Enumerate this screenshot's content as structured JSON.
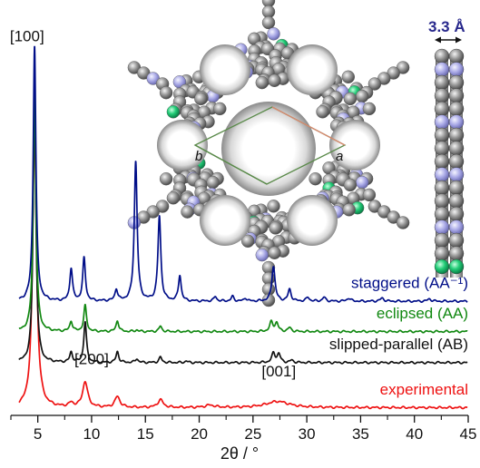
{
  "chart_data": {
    "type": "line",
    "title": "",
    "xlabel": "2θ / °",
    "ylabel": "",
    "xlim": [
      2.5,
      45
    ],
    "ylim": [
      -0.1,
      4.9
    ],
    "grid": false,
    "legend": "inline-right",
    "xticks_major": [
      5,
      10,
      15,
      20,
      25,
      30,
      35,
      40,
      45
    ],
    "xtick_labels": [
      "5",
      "10",
      "15",
      "20",
      "25",
      "30",
      "35",
      "40",
      "45"
    ],
    "xticks_minor": [
      2.5,
      7.5,
      12.5,
      17.5,
      22.5,
      27.5,
      32.5,
      37.5,
      42.5
    ],
    "series": [
      {
        "name": "experimental",
        "color": "#ee1111",
        "offset": 0,
        "peaks": [
          {
            "x": 4.7,
            "h": 3.55,
            "w": 0.22
          },
          {
            "x": 8.1,
            "h": 0.05,
            "w": 0.25
          },
          {
            "x": 9.4,
            "h": 0.33,
            "w": 0.28
          },
          {
            "x": 12.4,
            "h": 0.14,
            "w": 0.28
          },
          {
            "x": 16.4,
            "h": 0.1,
            "w": 0.3
          },
          {
            "x": 21.0,
            "h": 0.03,
            "w": 0.5
          },
          {
            "x": 27.3,
            "h": 0.08,
            "w": 1.3
          }
        ]
      },
      {
        "name": "slipped-parallel (AB)",
        "color": "#111111",
        "offset": 0.58,
        "peaks": [
          {
            "x": 4.7,
            "h": 3.55,
            "w": 0.15
          },
          {
            "x": 8.1,
            "h": 0.13,
            "w": 0.15
          },
          {
            "x": 9.4,
            "h": 0.52,
            "w": 0.15
          },
          {
            "x": 12.4,
            "h": 0.14,
            "w": 0.15
          },
          {
            "x": 14.2,
            "h": 0.05,
            "w": 0.15
          },
          {
            "x": 16.4,
            "h": 0.07,
            "w": 0.15
          },
          {
            "x": 18.8,
            "h": 0.02,
            "w": 0.15
          },
          {
            "x": 26.9,
            "h": 0.12,
            "w": 0.18
          },
          {
            "x": 27.4,
            "h": 0.11,
            "w": 0.18
          },
          {
            "x": 28.6,
            "h": 0.03,
            "w": 0.18
          }
        ]
      },
      {
        "name": "eclipsed (AA)",
        "color": "#118811",
        "offset": 0.98,
        "peaks": [
          {
            "x": 4.7,
            "h": 3.1,
            "w": 0.15
          },
          {
            "x": 8.1,
            "h": 0.13,
            "w": 0.15
          },
          {
            "x": 9.4,
            "h": 0.33,
            "w": 0.15
          },
          {
            "x": 12.4,
            "h": 0.14,
            "w": 0.15
          },
          {
            "x": 14.2,
            "h": 0.02,
            "w": 0.15
          },
          {
            "x": 16.4,
            "h": 0.07,
            "w": 0.15
          },
          {
            "x": 26.7,
            "h": 0.12,
            "w": 0.18
          },
          {
            "x": 27.2,
            "h": 0.11,
            "w": 0.18
          },
          {
            "x": 28.4,
            "h": 0.05,
            "w": 0.18
          }
        ]
      },
      {
        "name": "staggered (AA⁻¹)",
        "color": "#000e88",
        "offset": 1.37,
        "peaks": [
          {
            "x": 4.7,
            "h": 3.3,
            "w": 0.15
          },
          {
            "x": 8.1,
            "h": 0.42,
            "w": 0.15
          },
          {
            "x": 9.3,
            "h": 0.55,
            "w": 0.15
          },
          {
            "x": 12.3,
            "h": 0.15,
            "w": 0.15
          },
          {
            "x": 14.1,
            "h": 1.8,
            "w": 0.16
          },
          {
            "x": 16.3,
            "h": 1.09,
            "w": 0.16
          },
          {
            "x": 18.2,
            "h": 0.33,
            "w": 0.15
          },
          {
            "x": 21.5,
            "h": 0.06,
            "w": 0.15
          },
          {
            "x": 23.1,
            "h": 0.06,
            "w": 0.15
          },
          {
            "x": 24.3,
            "h": 0.04,
            "w": 0.15
          },
          {
            "x": 26.9,
            "h": 0.45,
            "w": 0.18
          },
          {
            "x": 28.4,
            "h": 0.15,
            "w": 0.17
          },
          {
            "x": 30.1,
            "h": 0.05,
            "w": 0.17
          },
          {
            "x": 31.6,
            "h": 0.05,
            "w": 0.17
          },
          {
            "x": 33.9,
            "h": 0.04,
            "w": 0.2
          },
          {
            "x": 37.0,
            "h": 0.04,
            "w": 0.2
          },
          {
            "x": 41.4,
            "h": 0.03,
            "w": 0.2
          }
        ]
      }
    ],
    "annotations": [
      {
        "text": "[100]",
        "x": 4.0,
        "y": 4.72
      },
      {
        "text": "[200]",
        "x": 10.0,
        "y": 0.56
      },
      {
        "text": "[001]",
        "x": 27.4,
        "y": 0.4
      }
    ]
  },
  "inset": {
    "axis_a": "a",
    "axis_b": "b",
    "spacing_label": "3.3 Å",
    "colors": {
      "carbon": "#8c8c8c",
      "nitrogen": "#a6a6e8",
      "chlorine": "#1fd07a",
      "edge": "#111111"
    }
  }
}
